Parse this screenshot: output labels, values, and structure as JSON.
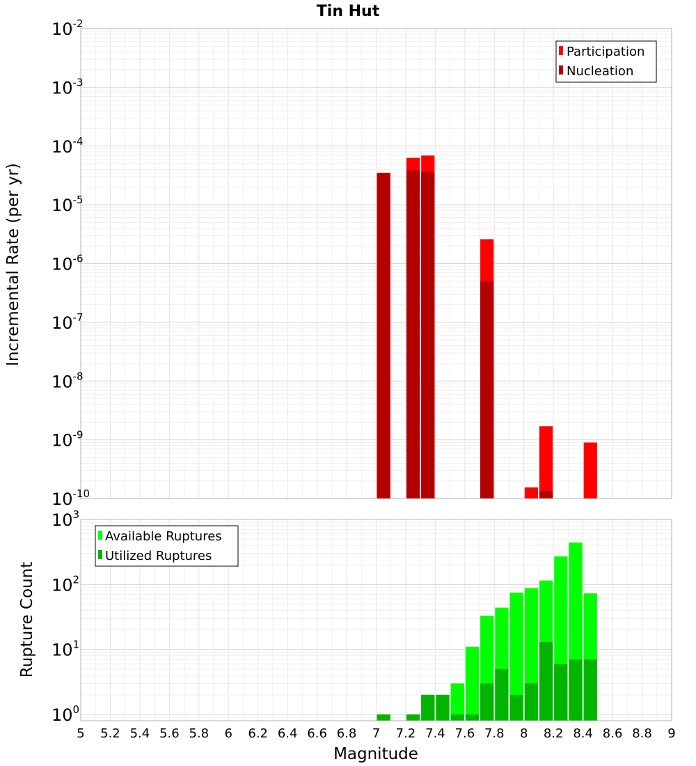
{
  "chart_data": [
    {
      "type": "bar",
      "title": "Tin Hut",
      "xlabel": "",
      "ylabel": "Incremental Rate (per yr)",
      "xlim": [
        5,
        9
      ],
      "ylim": [
        1e-10,
        0.01
      ],
      "yscale": "log",
      "y_tick_labels": [
        {
          "base": "10",
          "exp": "-10"
        },
        {
          "base": "10",
          "exp": "-9"
        },
        {
          "base": "10",
          "exp": "-8"
        },
        {
          "base": "10",
          "exp": "-7"
        },
        {
          "base": "10",
          "exp": "-6"
        },
        {
          "base": "10",
          "exp": "-5"
        },
        {
          "base": "10",
          "exp": "-4"
        },
        {
          "base": "10",
          "exp": "-3"
        },
        {
          "base": "10",
          "exp": "-2"
        }
      ],
      "grid": true,
      "legend_position": "top-right",
      "series": [
        {
          "name": "Participation",
          "color": "#ff0000",
          "x": [
            7.05,
            7.25,
            7.35,
            7.75,
            8.05,
            8.15,
            8.45
          ],
          "values": [
            3.5e-05,
            6.3e-05,
            6.9e-05,
            2.6e-06,
            1.55e-10,
            1.7e-09,
            9e-10
          ]
        },
        {
          "name": "Nucleation",
          "color": "#b40000",
          "x": [
            7.05,
            7.25,
            7.35,
            7.75,
            8.15
          ],
          "values": [
            3.5e-05,
            3.9e-05,
            3.6e-05,
            5e-07,
            1.35e-10
          ]
        }
      ]
    },
    {
      "type": "bar",
      "title": "",
      "xlabel": "Magnitude",
      "ylabel": "Rupture Count",
      "xlim": [
        5,
        9
      ],
      "ylim": [
        0.8,
        1000
      ],
      "yscale": "log",
      "x_tick_labels": [
        "5",
        "5.2",
        "5.4",
        "5.6",
        "5.8",
        "6",
        "6.2",
        "6.4",
        "6.6",
        "6.8",
        "7",
        "7.2",
        "7.4",
        "7.6",
        "7.8",
        "8",
        "8.2",
        "8.4",
        "8.6",
        "8.8",
        "9"
      ],
      "y_tick_labels": [
        {
          "base": "10",
          "exp": "0"
        },
        {
          "base": "10",
          "exp": "1"
        },
        {
          "base": "10",
          "exp": "2"
        },
        {
          "base": "10",
          "exp": "3"
        }
      ],
      "grid": true,
      "legend_position": "top-left",
      "series": [
        {
          "name": "Available Ruptures",
          "color": "#00ff00",
          "x": [
            7.05,
            7.25,
            7.35,
            7.45,
            7.55,
            7.65,
            7.75,
            7.85,
            7.95,
            8.05,
            8.15,
            8.25,
            8.35,
            8.45
          ],
          "values": [
            1,
            1,
            2,
            2,
            3,
            11,
            33,
            44,
            75,
            88,
            115,
            270,
            440,
            73
          ]
        },
        {
          "name": "Utilized Ruptures",
          "color": "#00b400",
          "x": [
            7.05,
            7.25,
            7.35,
            7.45,
            7.55,
            7.65,
            7.75,
            7.85,
            7.95,
            8.05,
            8.15,
            8.25,
            8.35,
            8.45
          ],
          "values": [
            1,
            1,
            2,
            2,
            1,
            1,
            3,
            5,
            2,
            3,
            13,
            6,
            7,
            7
          ]
        }
      ]
    }
  ]
}
